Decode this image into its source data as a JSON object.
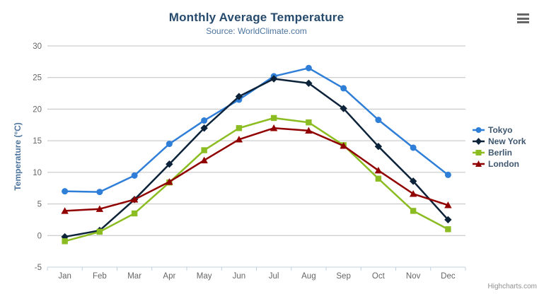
{
  "header": {
    "title": "Monthly Average Temperature",
    "subtitle": "Source: WorldClimate.com",
    "context_menu_icon": "hamburger-icon"
  },
  "credits_label": "Highcharts.com",
  "chart_data": {
    "type": "line",
    "title": "Monthly Average Temperature",
    "subtitle": "Source: WorldClimate.com",
    "xlabel": "",
    "ylabel": "Temperature (°C)",
    "ylim": [
      -5,
      30
    ],
    "ytick_step": 5,
    "grid": true,
    "legend_position": "right",
    "categories": [
      "Jan",
      "Feb",
      "Mar",
      "Apr",
      "May",
      "Jun",
      "Jul",
      "Aug",
      "Sep",
      "Oct",
      "Nov",
      "Dec"
    ],
    "series": [
      {
        "name": "Tokyo",
        "color": "#2f7ed8",
        "marker": "circle",
        "values": [
          7.0,
          6.9,
          9.5,
          14.5,
          18.2,
          21.5,
          25.2,
          26.5,
          23.3,
          18.3,
          13.9,
          9.6
        ]
      },
      {
        "name": "New York",
        "color": "#0d233a",
        "marker": "diamond",
        "values": [
          -0.2,
          0.8,
          5.7,
          11.3,
          17.0,
          22.0,
          24.8,
          24.1,
          20.1,
          14.1,
          8.6,
          2.5
        ]
      },
      {
        "name": "Berlin",
        "color": "#8bbc21",
        "marker": "square",
        "values": [
          -0.9,
          0.6,
          3.5,
          8.4,
          13.5,
          17.0,
          18.6,
          17.9,
          14.3,
          9.0,
          3.9,
          1.0
        ]
      },
      {
        "name": "London",
        "color": "#910000",
        "marker": "triangle",
        "values": [
          3.9,
          4.2,
          5.7,
          8.5,
          11.9,
          15.2,
          17.0,
          16.6,
          14.2,
          10.3,
          6.6,
          4.8
        ]
      }
    ]
  },
  "colors": {
    "title": "#274b6d",
    "subtitle": "#4d759e",
    "axis_title": "#4d759e",
    "axis_label": "#666666",
    "grid_line": "#c0c0c0",
    "axis_line": "#c0d0e0",
    "legend_text": "#3e576f",
    "credits": "#909090",
    "context_button": "#666666",
    "background": "#ffffff"
  }
}
